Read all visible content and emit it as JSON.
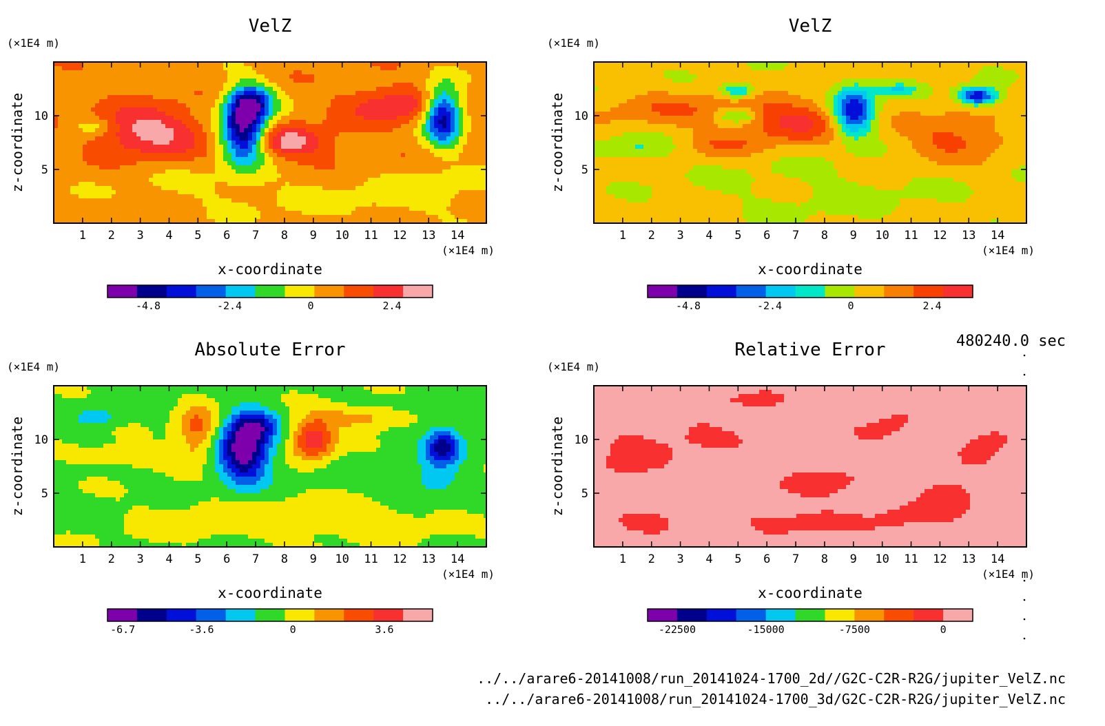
{
  "colors": {
    "ref11": [
      "#7e00ad",
      "#00008c",
      "#0010d8",
      "#0060e8",
      "#00c8f0",
      "#30d828",
      "#f8e800",
      "#f89400",
      "#f84c00",
      "#f83030",
      "#f8a8a8"
    ],
    "veq11": [
      "#7e00ad",
      "#00008c",
      "#0010d8",
      "#0060e8",
      "#00c8f0",
      "#00e8c8",
      "#a8e800",
      "#f8c000",
      "#f88000",
      "#f84000",
      "#f83030"
    ],
    "rel11": [
      "#7e00ad",
      "#00008c",
      "#0010d8",
      "#0060e8",
      "#00c8f0",
      "#30d828",
      "#f8e800",
      "#f89400",
      "#f84c00",
      "#f83030",
      "#f8a8a8"
    ]
  },
  "time_label": "480240.0 sec",
  "file_paths": [
    "../../arare6-20141008/run_20141024-1700_2d//G2C-C2R-R2G/jupiter_VelZ.nc",
    "../../arare6-20141008/run_20141024-1700_3d/G2C-C2R-R2G/jupiter_VelZ.nc"
  ],
  "chart_data": [
    {
      "type": "heatmap",
      "title": "VelZ",
      "xlabel": "x-coordinate",
      "ylabel": "z-coordinate",
      "x_unit": "(×1E4 m)",
      "y_unit": "(×1E4 m)",
      "xlim": [
        0,
        15
      ],
      "ylim": [
        0,
        15
      ],
      "x_ticks": [
        "1",
        "2",
        "3",
        "4",
        "5",
        "6",
        "7",
        "8",
        "9",
        "10",
        "11",
        "12",
        "13",
        "14"
      ],
      "y_ticks": [
        "5",
        "10"
      ],
      "colorbar_ticks": [
        "-4.8",
        "-2.4",
        "0",
        "2.4"
      ],
      "colorbar_tick_values": [
        -4.8,
        -2.4,
        0,
        2.4
      ],
      "colorbar_range": [
        -6.0,
        3.6
      ],
      "palette": "ref11",
      "background": 0.6,
      "features": [
        {
          "x": 3.3,
          "z": 8.5,
          "amp": 2.6,
          "sx": 1.3,
          "sz": 1.6
        },
        {
          "x": 6.6,
          "z": 8.8,
          "amp": -6.2,
          "sx": 0.55,
          "sz": 2.2
        },
        {
          "x": 6.9,
          "z": 11.3,
          "amp": -3.5,
          "sx": 0.55,
          "sz": 1.1
        },
        {
          "x": 8.2,
          "z": 7.6,
          "amp": 2.4,
          "sx": 0.9,
          "sz": 1.0
        },
        {
          "x": 11.8,
          "z": 11.0,
          "amp": 2.0,
          "sx": 1.2,
          "sz": 1.2
        },
        {
          "x": 13.5,
          "z": 10.0,
          "amp": -5.5,
          "sx": 0.45,
          "sz": 1.9
        },
        {
          "x": 1.3,
          "z": 9.0,
          "amp": -1.3,
          "sx": 0.5,
          "sz": 0.6
        },
        {
          "x": 7.0,
          "z": 3.0,
          "amp": -0.6,
          "sx": 4.0,
          "sz": 2.0
        },
        {
          "x": 13.0,
          "z": 3.0,
          "amp": -0.7,
          "sx": 2.0,
          "sz": 2.0
        },
        {
          "x": 10.0,
          "z": 6.0,
          "amp": 0.5,
          "sx": 2.0,
          "sz": 1.5
        }
      ]
    },
    {
      "type": "heatmap",
      "title": "VelZ",
      "xlabel": "x-coordinate",
      "ylabel": "z-coordinate",
      "x_unit": "(×1E4 m)",
      "y_unit": "(×1E4 m)",
      "xlim": [
        0,
        15
      ],
      "ylim": [
        0,
        15
      ],
      "x_ticks": [
        "1",
        "2",
        "3",
        "4",
        "5",
        "6",
        "7",
        "8",
        "9",
        "10",
        "11",
        "12",
        "13",
        "14"
      ],
      "y_ticks": [
        "5",
        "10"
      ],
      "colorbar_ticks": [
        "-4.8",
        "-2.4",
        "0",
        "2.4"
      ],
      "colorbar_tick_values": [
        -4.8,
        -2.4,
        0,
        2.4
      ],
      "colorbar_range": [
        -6.0,
        3.6
      ],
      "palette": "veq11",
      "background": 0.4,
      "features": [
        {
          "x": 7.0,
          "z": 9.5,
          "amp": 2.4,
          "sx": 1.3,
          "sz": 1.4
        },
        {
          "x": 9.0,
          "z": 10.4,
          "amp": -5.0,
          "sx": 0.5,
          "sz": 1.6
        },
        {
          "x": 5.0,
          "z": 12.3,
          "amp": -2.6,
          "sx": 0.4,
          "sz": 0.5
        },
        {
          "x": 5.0,
          "z": 10.0,
          "amp": -2.2,
          "sx": 0.5,
          "sz": 0.5
        },
        {
          "x": 13.3,
          "z": 11.8,
          "amp": -4.8,
          "sx": 0.45,
          "sz": 0.6
        },
        {
          "x": 10.5,
          "z": 12.4,
          "amp": -1.8,
          "sx": 0.5,
          "sz": 0.4
        },
        {
          "x": 12.5,
          "z": 8.0,
          "amp": 1.8,
          "sx": 1.2,
          "sz": 1.5
        },
        {
          "x": 3.0,
          "z": 10.5,
          "amp": 1.3,
          "sx": 2.0,
          "sz": 1.2
        },
        {
          "x": 4.5,
          "z": 7.3,
          "amp": 1.2,
          "sx": 1.0,
          "sz": 0.8
        },
        {
          "x": 1.5,
          "z": 7.0,
          "amp": -1.2,
          "sx": 0.9,
          "sz": 0.8
        },
        {
          "x": 8.0,
          "z": 3.0,
          "amp": -0.5,
          "sx": 3.0,
          "sz": 2.0
        }
      ]
    },
    {
      "type": "heatmap",
      "title": "Absolute Error",
      "xlabel": "x-coordinate",
      "ylabel": "z-coordinate",
      "x_unit": "(×1E4 m)",
      "y_unit": "(×1E4 m)",
      "xlim": [
        0,
        15
      ],
      "ylim": [
        0,
        15
      ],
      "x_ticks": [
        "1",
        "2",
        "3",
        "4",
        "5",
        "6",
        "7",
        "8",
        "9",
        "10",
        "11",
        "12",
        "13",
        "14"
      ],
      "y_ticks": [
        "5",
        "10"
      ],
      "colorbar_ticks": [
        "-6.7",
        "-3.6",
        "0",
        "3.6"
      ],
      "colorbar_tick_values": [
        -6.7,
        -3.6,
        0,
        3.6
      ],
      "colorbar_range": [
        -7.3,
        5.5
      ],
      "palette": "ref11",
      "background": -0.6,
      "features": [
        {
          "x": 6.6,
          "z": 9.0,
          "amp": -6.8,
          "sx": 0.6,
          "sz": 2.0
        },
        {
          "x": 7.0,
          "z": 11.3,
          "amp": -3.5,
          "sx": 0.5,
          "sz": 1.0
        },
        {
          "x": 9.0,
          "z": 10.0,
          "amp": 4.8,
          "sx": 0.5,
          "sz": 1.3
        },
        {
          "x": 5.0,
          "z": 11.0,
          "amp": 3.0,
          "sx": 0.5,
          "sz": 1.6
        },
        {
          "x": 13.5,
          "z": 9.3,
          "amp": -5.0,
          "sx": 0.45,
          "sz": 1.2
        },
        {
          "x": 13.2,
          "z": 6.2,
          "amp": -2.0,
          "sx": 0.5,
          "sz": 0.8
        },
        {
          "x": 10.5,
          "z": 12.0,
          "amp": 2.2,
          "sx": 1.0,
          "sz": 0.7
        },
        {
          "x": 3.0,
          "z": 8.5,
          "amp": 1.5,
          "sx": 1.5,
          "sz": 0.7
        },
        {
          "x": 1.5,
          "z": 12.0,
          "amp": -1.6,
          "sx": 0.5,
          "sz": 0.6
        },
        {
          "x": 6.0,
          "z": 2.5,
          "amp": 0.9,
          "sx": 2.5,
          "sz": 1.5
        },
        {
          "x": 11.0,
          "z": 2.5,
          "amp": 0.9,
          "sx": 2.0,
          "sz": 1.2
        }
      ]
    },
    {
      "type": "heatmap",
      "title": "Relative Error",
      "xlabel": "x-coordinate",
      "ylabel": "z-coordinate",
      "x_unit": "(×1E4 m)",
      "y_unit": "(×1E4 m)",
      "xlim": [
        0,
        15
      ],
      "ylim": [
        0,
        15
      ],
      "x_ticks": [
        "1",
        "2",
        "3",
        "4",
        "5",
        "6",
        "7",
        "8",
        "9",
        "10",
        "11",
        "12",
        "13",
        "14"
      ],
      "y_ticks": [
        "5",
        "10"
      ],
      "colorbar_ticks": [
        "-22500",
        "-15000",
        "-7500",
        "0"
      ],
      "colorbar_tick_values": [
        -22500,
        -15000,
        -7500,
        0
      ],
      "colorbar_range": [
        -25000,
        2500
      ],
      "palette": "rel11",
      "background": 1000,
      "features": [
        {
          "x": 1.2,
          "z": 8.5,
          "amp": -1800,
          "sx": 0.8,
          "sz": 1.6
        },
        {
          "x": 3.5,
          "z": 10.5,
          "amp": -1500,
          "sx": 1.0,
          "sz": 1.2
        },
        {
          "x": 8.0,
          "z": 6.0,
          "amp": -1700,
          "sx": 1.0,
          "sz": 1.0
        },
        {
          "x": 7.0,
          "z": 2.5,
          "amp": -1800,
          "sx": 1.5,
          "sz": 0.9
        },
        {
          "x": 12.5,
          "z": 5.5,
          "amp": -1700,
          "sx": 1.0,
          "sz": 1.4
        },
        {
          "x": 13.8,
          "z": 10.5,
          "amp": -1600,
          "sx": 0.8,
          "sz": 1.4
        },
        {
          "x": 10.0,
          "z": 10.5,
          "amp": -1600,
          "sx": 0.8,
          "sz": 1.2
        },
        {
          "x": 5.5,
          "z": 13.5,
          "amp": -1500,
          "sx": 1.0,
          "sz": 0.6
        },
        {
          "x": 11.0,
          "z": 3.0,
          "amp": -1600,
          "sx": 0.9,
          "sz": 0.9
        },
        {
          "x": 2.0,
          "z": 2.0,
          "amp": -1500,
          "sx": 0.8,
          "sz": 0.8
        }
      ]
    }
  ]
}
